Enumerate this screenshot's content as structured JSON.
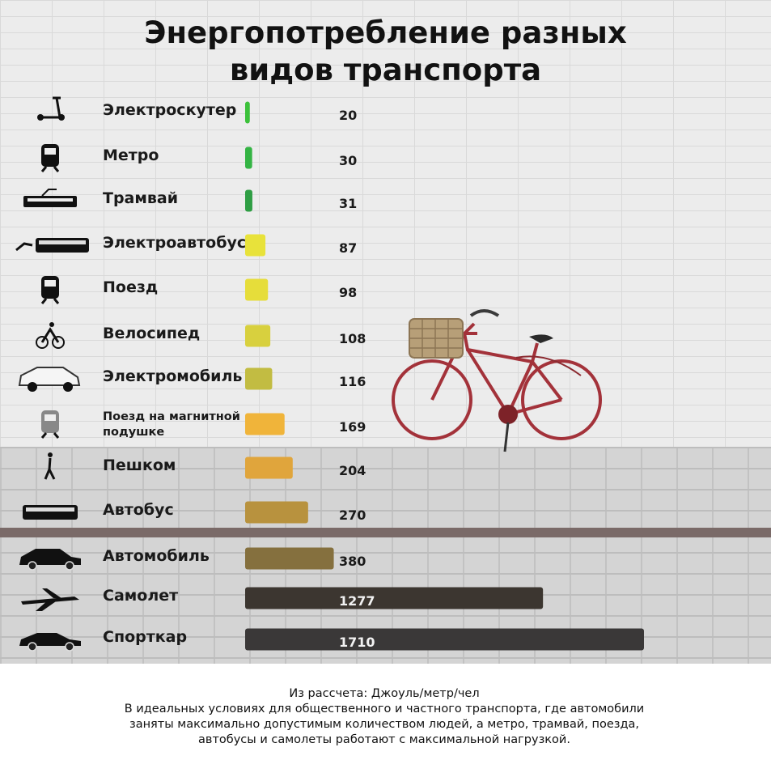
{
  "title": {
    "line1": "Энергопотребление разных",
    "line2": "видов транспорта"
  },
  "chart_data": {
    "type": "bar",
    "orientation": "horizontal",
    "categories": [
      "Электроскутер",
      "Метро",
      "Трамвай",
      "Электроавтобус",
      "Поезд",
      "Велосипед",
      "Электромобиль",
      "Поезд на магнитной подушке",
      "Пешком",
      "Автобус",
      "Автомобиль",
      "Самолет",
      "Спорткар"
    ],
    "category_lines": [
      [
        "Электроскутер"
      ],
      [
        "Метро"
      ],
      [
        "Трамвай"
      ],
      [
        "Электроавтобус"
      ],
      [
        "Поезд"
      ],
      [
        "Велосипед"
      ],
      [
        "Электромобиль"
      ],
      [
        "Поезд на магнитной",
        "подушке"
      ],
      [
        "Пешком"
      ],
      [
        "Автобус"
      ],
      [
        "Автомобиль"
      ],
      [
        "Самолет"
      ],
      [
        "Спорткар"
      ]
    ],
    "icons": [
      "kick-scooter-icon",
      "metro-train-icon",
      "tram-icon",
      "electric-bus-icon",
      "train-icon",
      "cyclist-icon",
      "electric-car-icon",
      "maglev-train-icon",
      "pedestrian-icon",
      "bus-icon",
      "car-icon",
      "airplane-icon",
      "sports-car-icon"
    ],
    "values": [
      20,
      30,
      31,
      87,
      98,
      108,
      116,
      169,
      204,
      270,
      380,
      1277,
      1710
    ],
    "bar_colors": [
      "#3cc13b",
      "#34b444",
      "#2f9e44",
      "#e8e23a",
      "#e6dd3a",
      "#d8d03e",
      "#c2bc42",
      "#f0b43a",
      "#e0a53c",
      "#b8923e",
      "#85703e",
      "#3c3630",
      "#3a3838"
    ],
    "label_inside": [
      false,
      false,
      false,
      false,
      false,
      false,
      false,
      false,
      false,
      false,
      false,
      true,
      true
    ],
    "xlim": [
      0,
      1710
    ],
    "grid": false,
    "legend": "none"
  },
  "footnote": {
    "line1": "Из рассчета: Джоуль/метр/чел",
    "line2": "В идеальных условиях для общественного и частного транспорта, где автомобили",
    "line3": "заняты максимально допустимым количеством людей, а метро, трамвай, поезда,",
    "line4": "автобусы и самолеты работают с максимальной нагрузкой."
  }
}
